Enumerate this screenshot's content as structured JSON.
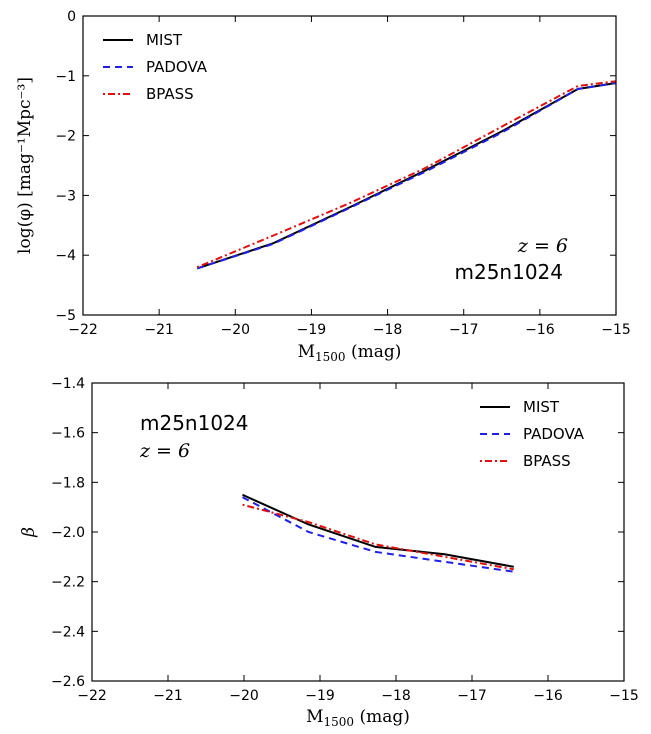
{
  "chart_data": [
    {
      "type": "line",
      "xlabel": "M",
      "xlabel_sub": "1500",
      "xlabel_unit": " (mag)",
      "ylabel": "log(φ) [mag⁻¹Mpc⁻³]",
      "xlim": [
        -22,
        -15
      ],
      "ylim": [
        -5,
        0
      ],
      "xticks": [
        -22,
        -21,
        -20,
        -19,
        -18,
        -17,
        -16,
        -15
      ],
      "yticks": [
        -5,
        -4,
        -3,
        -2,
        -1,
        0
      ],
      "xtick_labels": [
        "−22",
        "−21",
        "−20",
        "−19",
        "−18",
        "−17",
        "−16",
        "−15"
      ],
      "ytick_labels": [
        "−5",
        "−4",
        "−3",
        "−2",
        "−1",
        "0"
      ],
      "legend_position": "top-left",
      "annotations": {
        "redshift": "z = 6",
        "simulation": "m25n1024"
      },
      "series": [
        {
          "name": "MIST",
          "color": "#000000",
          "dash": "solid",
          "x": [
            -20.5,
            -19.5,
            -18.5,
            -17.5,
            -16.5,
            -15.5,
            -15.0
          ],
          "y": [
            -4.22,
            -3.8,
            -3.2,
            -2.58,
            -1.93,
            -1.22,
            -1.12
          ]
        },
        {
          "name": "PADOVA",
          "color": "#1f1fe6",
          "dash": "dashed",
          "x": [
            -20.5,
            -19.5,
            -18.5,
            -17.5,
            -16.5,
            -15.5,
            -15.0
          ],
          "y": [
            -4.22,
            -3.81,
            -3.21,
            -2.6,
            -1.95,
            -1.22,
            -1.12
          ]
        },
        {
          "name": "BPASS",
          "color": "#e01010",
          "dash": "dashdot",
          "x": [
            -20.5,
            -19.5,
            -18.5,
            -17.5,
            -16.5,
            -15.5,
            -15.0
          ],
          "y": [
            -4.2,
            -3.67,
            -3.13,
            -2.54,
            -1.85,
            -1.17,
            -1.09
          ]
        }
      ]
    },
    {
      "type": "line",
      "xlabel": "M",
      "xlabel_sub": "1500",
      "xlabel_unit": " (mag)",
      "ylabel": "β",
      "xlim": [
        -22,
        -15
      ],
      "ylim": [
        -2.6,
        -1.4
      ],
      "xticks": [
        -22,
        -21,
        -20,
        -19,
        -18,
        -17,
        -16,
        -15
      ],
      "yticks": [
        -2.6,
        -2.4,
        -2.2,
        -2.0,
        -1.8,
        -1.6,
        -1.4
      ],
      "xtick_labels": [
        "−22",
        "−21",
        "−20",
        "−19",
        "−18",
        "−17",
        "−16",
        "−15"
      ],
      "ytick_labels": [
        "−2.6",
        "−2.4",
        "−2.2",
        "−2.0",
        "−1.8",
        "−1.6",
        "−1.4"
      ],
      "legend_position": "top-right",
      "annotations": {
        "simulation": "m25n1024",
        "redshift": "z = 6"
      },
      "series": [
        {
          "name": "MIST",
          "color": "#000000",
          "dash": "solid",
          "x": [
            -20.02,
            -19.15,
            -18.27,
            -17.36,
            -16.45
          ],
          "y": [
            -1.85,
            -1.97,
            -2.06,
            -2.09,
            -2.14
          ]
        },
        {
          "name": "PADOVA",
          "color": "#1f1fe6",
          "dash": "dashed",
          "x": [
            -20.02,
            -19.15,
            -18.27,
            -17.36,
            -16.45
          ],
          "y": [
            -1.86,
            -2.0,
            -2.08,
            -2.12,
            -2.16
          ]
        },
        {
          "name": "BPASS",
          "color": "#e01010",
          "dash": "dashdot",
          "x": [
            -20.02,
            -19.15,
            -18.27,
            -17.36,
            -16.45
          ],
          "y": [
            -1.89,
            -1.96,
            -2.05,
            -2.1,
            -2.15
          ]
        }
      ]
    }
  ]
}
